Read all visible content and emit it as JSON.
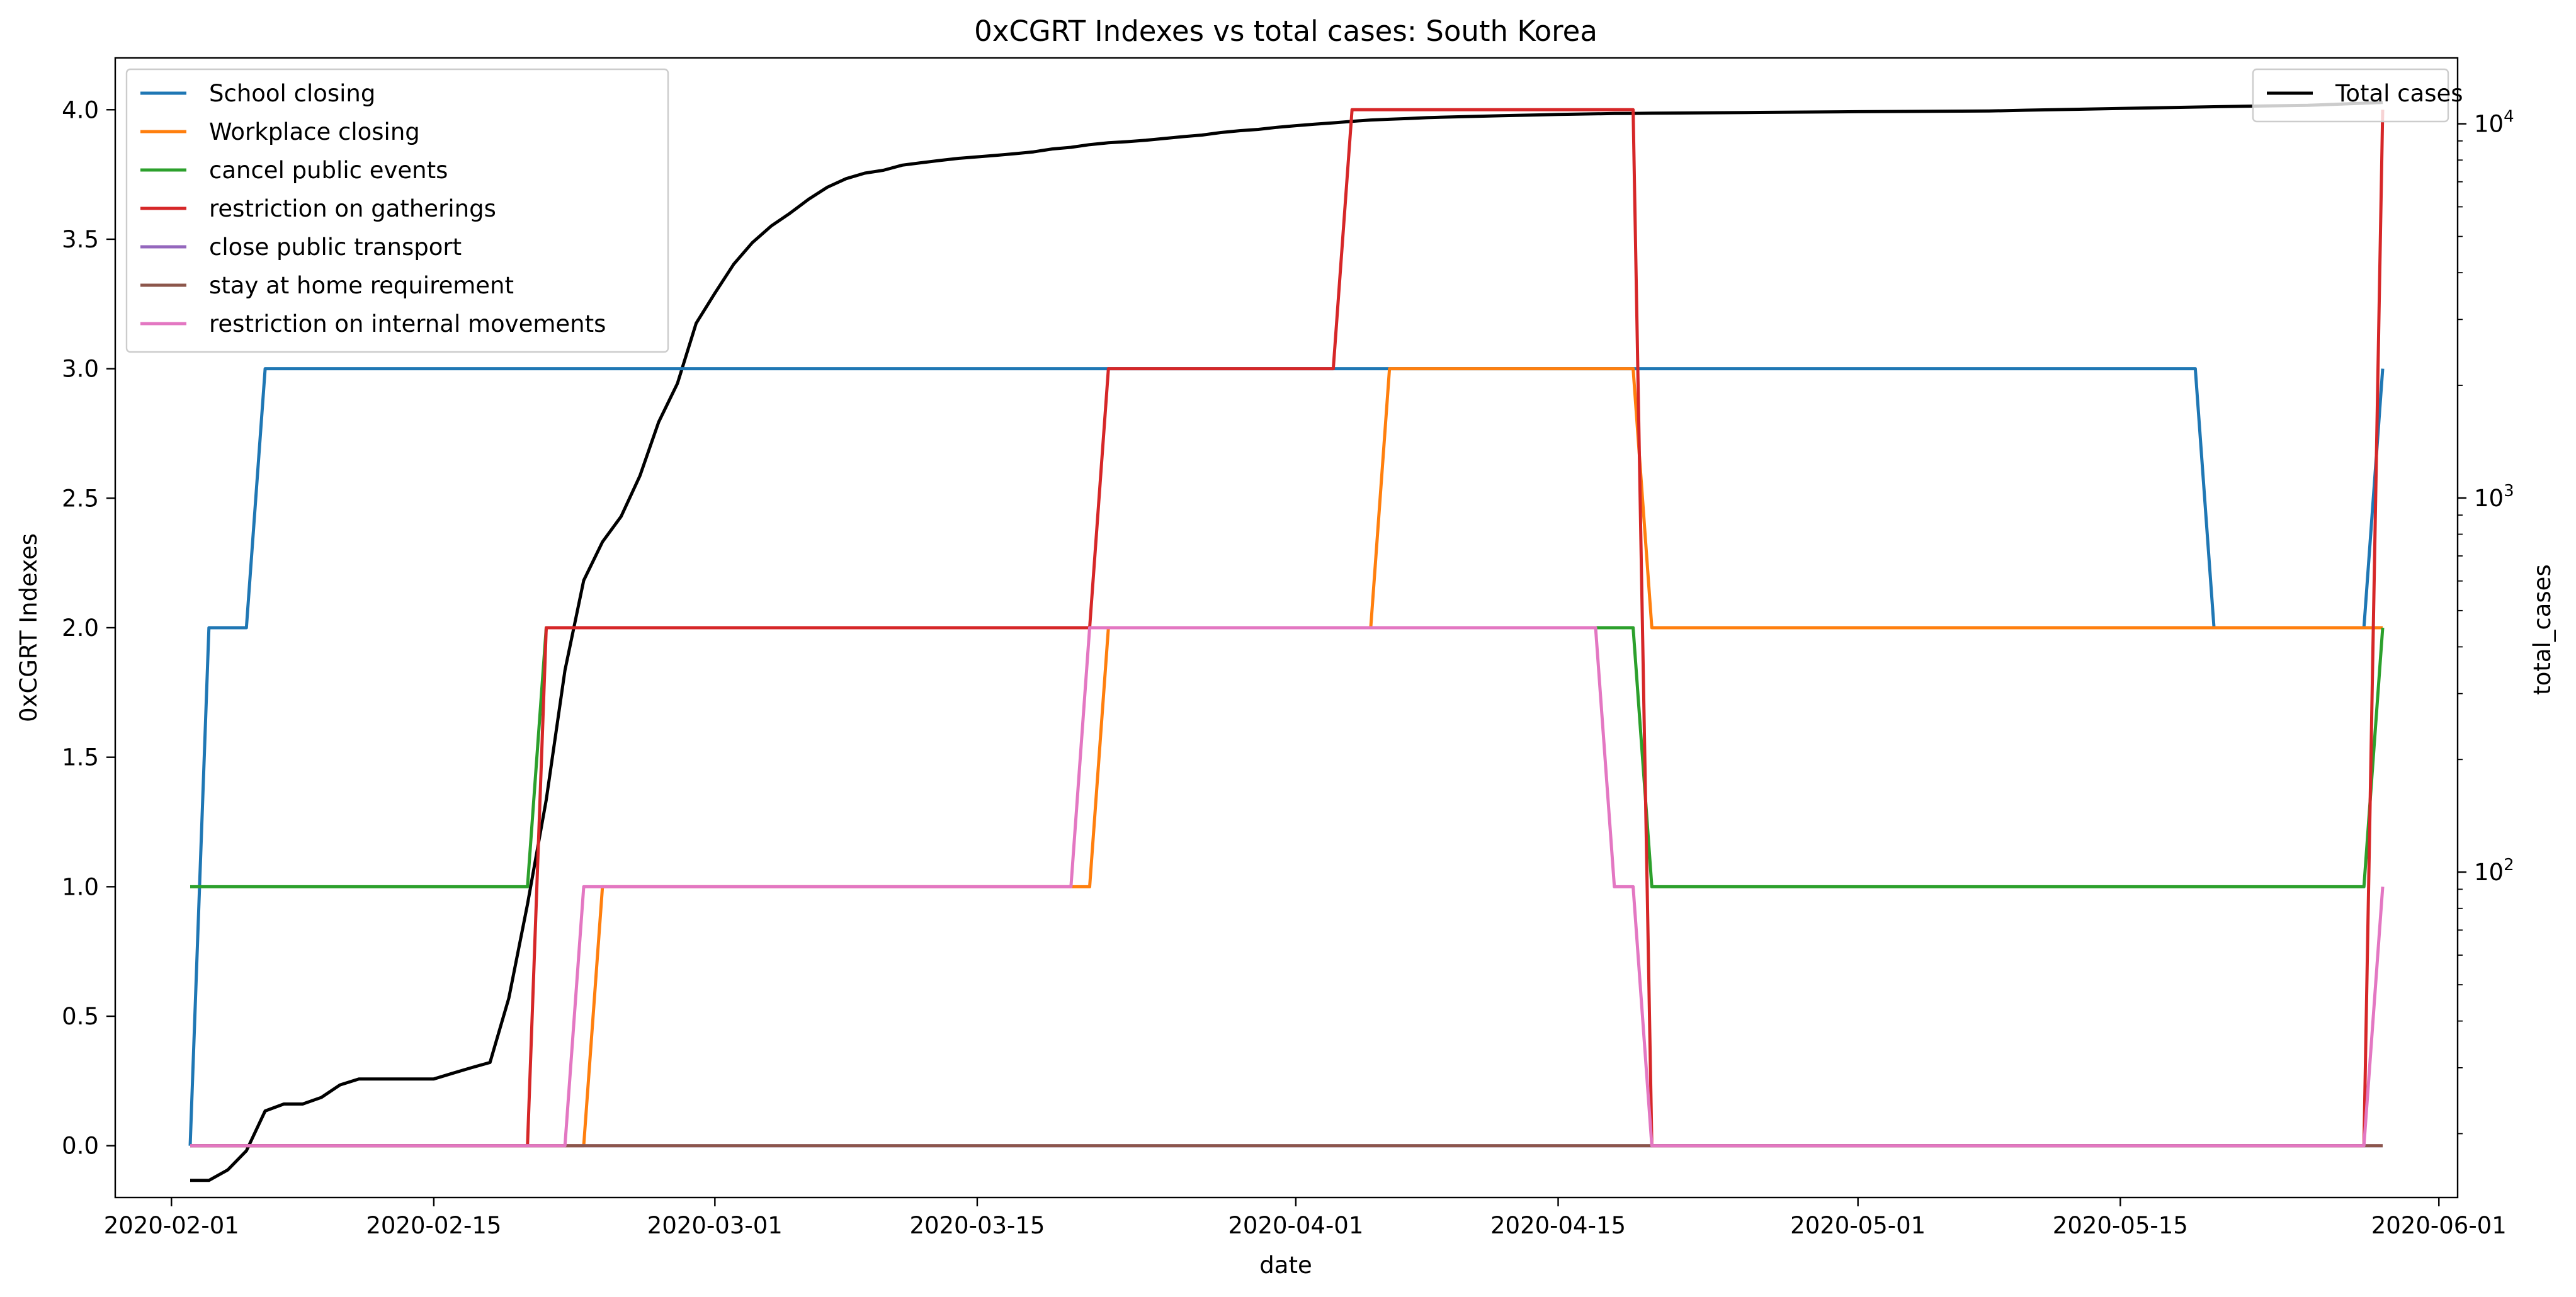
{
  "chart_data": {
    "type": "line",
    "title": "0xCGRT Indexes vs total cases:  South Korea",
    "xlabel": "date",
    "ylabel": "0xCGRT Indexes",
    "y2label": "total_cases",
    "xlim": [
      "2020-01-29",
      "2020-06-02"
    ],
    "ylim": [
      -0.2,
      4.2
    ],
    "y2scale": "log",
    "y2lim": [
      13.5,
      15000
    ],
    "x_ticks": [
      "2020-02-01",
      "2020-02-15",
      "2020-03-01",
      "2020-03-15",
      "2020-04-01",
      "2020-04-15",
      "2020-05-01",
      "2020-05-15",
      "2020-06-01"
    ],
    "y_ticks": [
      "0.0",
      "0.5",
      "1.0",
      "1.5",
      "2.0",
      "2.5",
      "3.0",
      "3.5",
      "4.0"
    ],
    "y2_ticks": [
      {
        "value": 100,
        "base": "10",
        "exp": "2"
      },
      {
        "value": 1000,
        "base": "10",
        "exp": "3"
      },
      {
        "value": 10000,
        "base": "10",
        "exp": "4"
      }
    ],
    "legend_left": "upper-left",
    "legend_right": "upper-right",
    "series": [
      {
        "name": "School closing",
        "color": "#1f77b4",
        "axis": "left",
        "points": [
          [
            "2020-02-02",
            0
          ],
          [
            "2020-02-03",
            2
          ],
          [
            "2020-02-05",
            2
          ],
          [
            "2020-02-06",
            3
          ],
          [
            "2020-05-19",
            3
          ],
          [
            "2020-05-20",
            2
          ],
          [
            "2020-05-28",
            2
          ],
          [
            "2020-05-29",
            3
          ]
        ]
      },
      {
        "name": "Workplace closing",
        "color": "#ff7f0e",
        "axis": "left",
        "points": [
          [
            "2020-02-02",
            0
          ],
          [
            "2020-02-23",
            0
          ],
          [
            "2020-02-24",
            1
          ],
          [
            "2020-03-21",
            1
          ],
          [
            "2020-03-22",
            2
          ],
          [
            "2020-04-05",
            2
          ],
          [
            "2020-04-06",
            3
          ],
          [
            "2020-04-19",
            3
          ],
          [
            "2020-04-20",
            2
          ],
          [
            "2020-05-29",
            2
          ]
        ]
      },
      {
        "name": "cancel public events",
        "color": "#2ca02c",
        "axis": "left",
        "points": [
          [
            "2020-02-02",
            1
          ],
          [
            "2020-02-20",
            1
          ],
          [
            "2020-02-21",
            2
          ],
          [
            "2020-04-19",
            2
          ],
          [
            "2020-04-20",
            1
          ],
          [
            "2020-05-28",
            1
          ],
          [
            "2020-05-29",
            2
          ]
        ]
      },
      {
        "name": "restriction on gatherings",
        "color": "#d62728",
        "axis": "left",
        "points": [
          [
            "2020-02-02",
            0
          ],
          [
            "2020-02-20",
            0
          ],
          [
            "2020-02-21",
            2
          ],
          [
            "2020-03-21",
            2
          ],
          [
            "2020-03-22",
            3
          ],
          [
            "2020-04-03",
            3
          ],
          [
            "2020-04-04",
            4
          ],
          [
            "2020-04-19",
            4
          ],
          [
            "2020-04-20",
            0
          ],
          [
            "2020-05-28",
            0
          ],
          [
            "2020-05-29",
            4
          ]
        ]
      },
      {
        "name": "close public transport",
        "color": "#9467bd",
        "axis": "left",
        "points": [
          [
            "2020-02-02",
            0
          ],
          [
            "2020-05-29",
            0
          ]
        ]
      },
      {
        "name": "stay at home requirement",
        "color": "#8c564b",
        "axis": "left",
        "points": [
          [
            "2020-02-02",
            0
          ],
          [
            "2020-05-29",
            0
          ]
        ]
      },
      {
        "name": "restriction on internal movements",
        "color": "#e377c2",
        "axis": "left",
        "points": [
          [
            "2020-02-02",
            0
          ],
          [
            "2020-02-22",
            0
          ],
          [
            "2020-02-23",
            1
          ],
          [
            "2020-03-20",
            1
          ],
          [
            "2020-03-21",
            2
          ],
          [
            "2020-04-17",
            2
          ],
          [
            "2020-04-18",
            1
          ],
          [
            "2020-04-19",
            1
          ],
          [
            "2020-04-20",
            0
          ],
          [
            "2020-05-28",
            0
          ],
          [
            "2020-05-29",
            1
          ]
        ]
      },
      {
        "name": "Total cases",
        "color": "#000000",
        "axis": "right",
        "points": [
          [
            "2020-02-02",
            15
          ],
          [
            "2020-02-03",
            15
          ],
          [
            "2020-02-04",
            16
          ],
          [
            "2020-02-05",
            18
          ],
          [
            "2020-02-06",
            23
          ],
          [
            "2020-02-07",
            24
          ],
          [
            "2020-02-08",
            24
          ],
          [
            "2020-02-09",
            25
          ],
          [
            "2020-02-10",
            27
          ],
          [
            "2020-02-11",
            28
          ],
          [
            "2020-02-15",
            28
          ],
          [
            "2020-02-16",
            29
          ],
          [
            "2020-02-17",
            30
          ],
          [
            "2020-02-18",
            31
          ],
          [
            "2020-02-19",
            46
          ],
          [
            "2020-02-20",
            82
          ],
          [
            "2020-02-21",
            156
          ],
          [
            "2020-02-22",
            346
          ],
          [
            "2020-02-23",
            602
          ],
          [
            "2020-02-24",
            763
          ],
          [
            "2020-02-25",
            893
          ],
          [
            "2020-02-26",
            1146
          ],
          [
            "2020-02-27",
            1595
          ],
          [
            "2020-02-28",
            2022
          ],
          [
            "2020-02-29",
            2931
          ],
          [
            "2020-03-01",
            3526
          ],
          [
            "2020-03-02",
            4212
          ],
          [
            "2020-03-03",
            4812
          ],
          [
            "2020-03-04",
            5328
          ],
          [
            "2020-03-05",
            5766
          ],
          [
            "2020-03-06",
            6284
          ],
          [
            "2020-03-07",
            6767
          ],
          [
            "2020-03-08",
            7134
          ],
          [
            "2020-03-09",
            7382
          ],
          [
            "2020-03-10",
            7513
          ],
          [
            "2020-03-11",
            7755
          ],
          [
            "2020-03-12",
            7869
          ],
          [
            "2020-03-13",
            7979
          ],
          [
            "2020-03-14",
            8086
          ],
          [
            "2020-03-15",
            8162
          ],
          [
            "2020-03-16",
            8236
          ],
          [
            "2020-03-17",
            8320
          ],
          [
            "2020-03-18",
            8413
          ],
          [
            "2020-03-19",
            8565
          ],
          [
            "2020-03-20",
            8652
          ],
          [
            "2020-03-21",
            8799
          ],
          [
            "2020-03-22",
            8897
          ],
          [
            "2020-03-23",
            8961
          ],
          [
            "2020-03-24",
            9037
          ],
          [
            "2020-03-25",
            9137
          ],
          [
            "2020-03-26",
            9241
          ],
          [
            "2020-03-27",
            9332
          ],
          [
            "2020-03-28",
            9478
          ],
          [
            "2020-03-29",
            9583
          ],
          [
            "2020-03-30",
            9661
          ],
          [
            "2020-03-31",
            9786
          ],
          [
            "2020-04-01",
            9887
          ],
          [
            "2020-04-02",
            9976
          ],
          [
            "2020-04-03",
            10062
          ],
          [
            "2020-04-04",
            10156
          ],
          [
            "2020-04-05",
            10237
          ],
          [
            "2020-04-06",
            10284
          ],
          [
            "2020-04-07",
            10331
          ],
          [
            "2020-04-08",
            10384
          ],
          [
            "2020-04-09",
            10423
          ],
          [
            "2020-04-10",
            10450
          ],
          [
            "2020-04-11",
            10480
          ],
          [
            "2020-04-12",
            10512
          ],
          [
            "2020-04-13",
            10537
          ],
          [
            "2020-04-14",
            10564
          ],
          [
            "2020-04-15",
            10591
          ],
          [
            "2020-04-16",
            10613
          ],
          [
            "2020-04-17",
            10635
          ],
          [
            "2020-04-18",
            10653
          ],
          [
            "2020-04-19",
            10661
          ],
          [
            "2020-04-20",
            10674
          ],
          [
            "2020-04-25",
            10718
          ],
          [
            "2020-05-01",
            10774
          ],
          [
            "2020-05-08",
            10822
          ],
          [
            "2020-05-10",
            10874
          ],
          [
            "2020-05-15",
            10991
          ],
          [
            "2020-05-20",
            11110
          ],
          [
            "2020-05-25",
            11206
          ],
          [
            "2020-05-29",
            11402
          ]
        ]
      }
    ]
  }
}
